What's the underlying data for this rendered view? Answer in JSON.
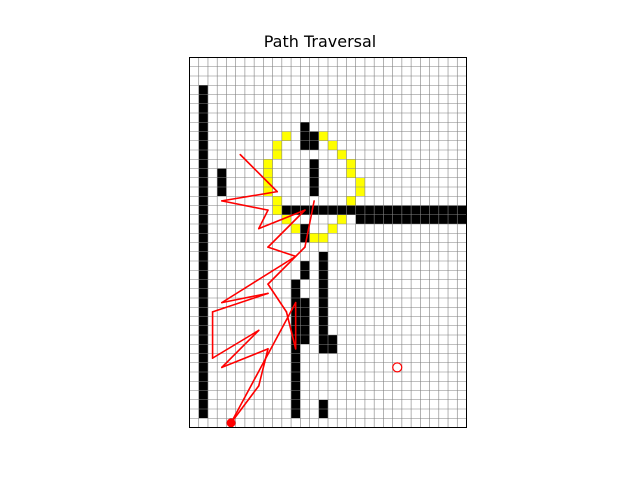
{
  "chart_data": {
    "type": "scatter",
    "title": "Path Traversal",
    "xlabel": "",
    "ylabel": "",
    "xlim": [
      0,
      30
    ],
    "ylim": [
      0,
      40
    ],
    "grid": true,
    "colors": {
      "obstacle": "#000000",
      "highlight": "#ffff00",
      "path": "#ff0000",
      "grid": "#808080",
      "background": "#ffffff"
    },
    "obstacles": [
      [
        1,
        1,
        36
      ],
      [
        1,
        1,
        35
      ],
      [
        1,
        2,
        33
      ],
      [
        1,
        12,
        21
      ],
      [
        1,
        1,
        21
      ],
      [
        2,
        24,
        22
      ],
      [
        3,
        24,
        22
      ],
      [
        3,
        25,
        27
      ],
      [
        10,
        24,
        13
      ],
      [
        11,
        1,
        5
      ],
      [
        11,
        1,
        15
      ],
      [
        11,
        7,
        8
      ],
      [
        12,
        30,
        32
      ],
      [
        13,
        30,
        31
      ],
      [
        13,
        25,
        28
      ],
      [
        14,
        8,
        18
      ],
      [
        14,
        1,
        2
      ],
      [
        15,
        8,
        8
      ],
      [
        15,
        9,
        9
      ],
      [
        12,
        20,
        21
      ],
      [
        12,
        16,
        17
      ],
      [
        12,
        9,
        13
      ],
      [
        10,
        23,
        23
      ],
      [
        11,
        23,
        23
      ],
      [
        12,
        23,
        23
      ],
      [
        13,
        23,
        23
      ],
      [
        14,
        23,
        23
      ],
      [
        15,
        23,
        23
      ],
      [
        16,
        23,
        23
      ],
      [
        17,
        23,
        23
      ],
      [
        18,
        22,
        23
      ],
      [
        19,
        22,
        23
      ],
      [
        20,
        22,
        23
      ],
      [
        21,
        22,
        23
      ],
      [
        22,
        22,
        23
      ],
      [
        23,
        22,
        23
      ],
      [
        24,
        22,
        23
      ],
      [
        25,
        22,
        23
      ],
      [
        26,
        22,
        23
      ],
      [
        27,
        22,
        23
      ],
      [
        28,
        22,
        23
      ],
      [
        29,
        22,
        23
      ]
    ],
    "highlight_cells": [
      [
        10,
        31
      ],
      [
        9,
        30
      ],
      [
        9,
        29
      ],
      [
        8,
        28
      ],
      [
        8,
        27
      ],
      [
        8,
        26
      ],
      [
        8,
        25
      ],
      [
        9,
        24
      ],
      [
        9,
        23
      ],
      [
        10,
        22
      ],
      [
        11,
        21
      ],
      [
        12,
        20
      ],
      [
        13,
        20
      ],
      [
        14,
        20
      ],
      [
        15,
        21
      ],
      [
        16,
        22
      ],
      [
        17,
        23
      ],
      [
        17,
        24
      ],
      [
        18,
        25
      ],
      [
        18,
        26
      ],
      [
        17,
        27
      ],
      [
        17,
        28
      ],
      [
        16,
        29
      ],
      [
        15,
        30
      ],
      [
        14,
        31
      ],
      [
        13,
        31
      ],
      [
        12,
        31
      ]
    ],
    "path_nodes": [
      [
        5.5,
        29.5
      ],
      [
        8.5,
        26.5
      ],
      [
        9.5,
        25.5
      ],
      [
        3.5,
        24.5
      ],
      [
        8.5,
        23.5
      ],
      [
        7.5,
        21.5
      ],
      [
        12.5,
        23.5
      ],
      [
        8.5,
        19.5
      ],
      [
        11.5,
        18.5
      ],
      [
        3.5,
        13.5
      ],
      [
        8.5,
        14.5
      ],
      [
        2.5,
        12.5
      ],
      [
        2.5,
        7.5
      ],
      [
        7.5,
        10.5
      ],
      [
        3.5,
        6.5
      ],
      [
        8.5,
        8.5
      ],
      [
        7.5,
        4.5
      ],
      [
        4.5,
        0.5
      ],
      [
        11.5,
        13.5
      ],
      [
        11.5,
        8.5
      ],
      [
        10.5,
        12.5
      ],
      [
        8.5,
        15.5
      ],
      [
        12.5,
        19.5
      ],
      [
        13.5,
        24.5
      ]
    ],
    "start": [
      4.5,
      0.5
    ],
    "goal": [
      22.5,
      6.5
    ]
  }
}
